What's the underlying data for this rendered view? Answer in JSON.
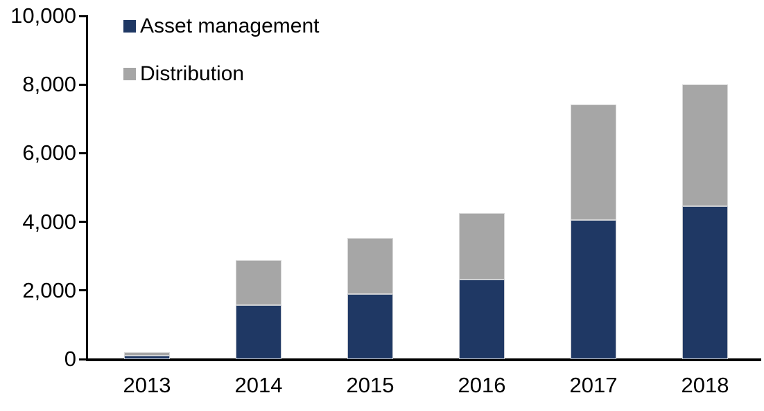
{
  "chart_data": {
    "type": "bar",
    "stacked": true,
    "title": "",
    "xlabel": "",
    "ylabel": "",
    "categories": [
      "2013",
      "2014",
      "2015",
      "2016",
      "2017",
      "2018"
    ],
    "series": [
      {
        "name": "Asset management",
        "color": "#1f3864",
        "values": [
          100,
          1570,
          1890,
          2310,
          4060,
          4450
        ]
      },
      {
        "name": "Distribution",
        "color": "#a6a6a6",
        "values": [
          100,
          1310,
          1630,
          1950,
          3360,
          3550
        ]
      }
    ],
    "totals": [
      200,
      2880,
      3520,
      4260,
      7420,
      8000
    ],
    "ylim": [
      0,
      10000
    ],
    "ytick_interval": 2000,
    "ytick_labels": [
      "0",
      "2,000",
      "4,000",
      "6,000",
      "8,000",
      "10,000"
    ],
    "grid": false,
    "legend_position": "top-left",
    "axis_color": "#000000",
    "background_color": "#ffffff"
  }
}
